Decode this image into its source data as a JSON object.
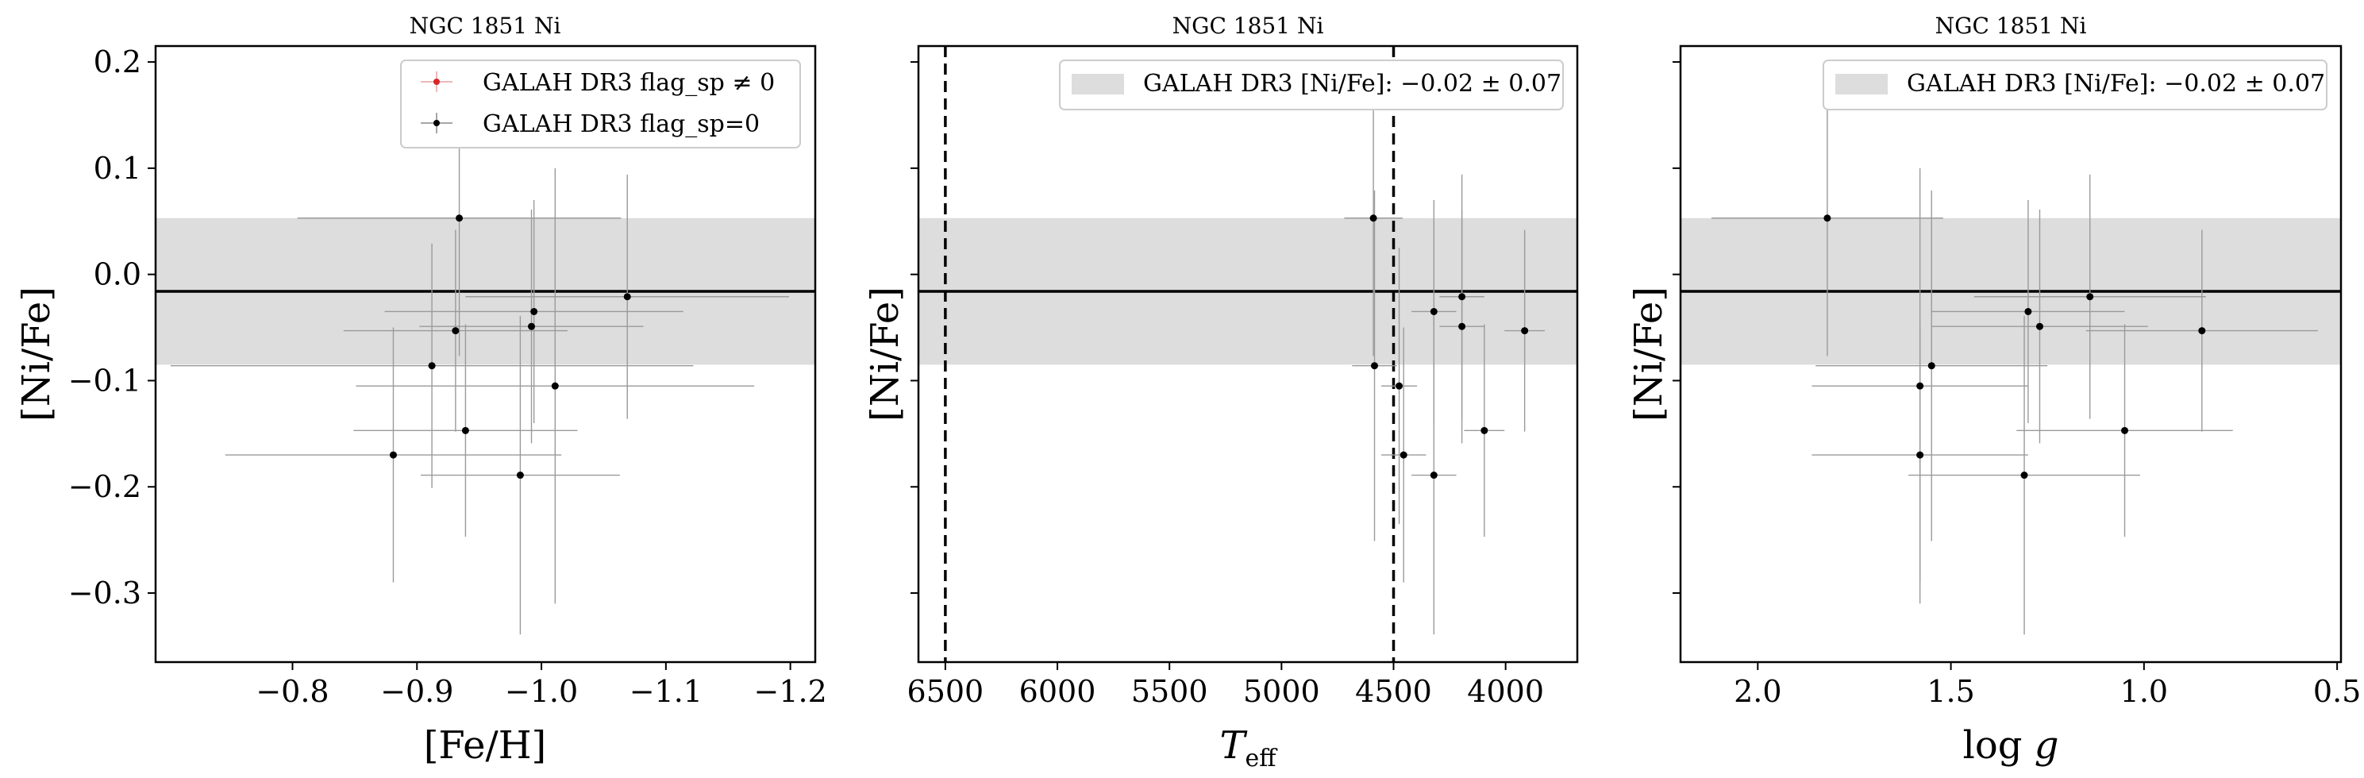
{
  "chart_data": [
    {
      "type": "scatter",
      "title": "NGC 1851 Ni",
      "xlabel": "[Fe/H]",
      "ylabel": "[Ni/Fe]",
      "xlim": [
        -0.69,
        -1.22
      ],
      "ylim": [
        -0.365,
        0.215
      ],
      "xticks": [
        -0.8,
        -0.9,
        -1.0,
        -1.1,
        -1.2
      ],
      "xtick_labels": [
        "−0.8",
        "−0.9",
        "−1.0",
        "−1.1",
        "−1.2"
      ],
      "yticks": [
        0.2,
        0.1,
        0.0,
        -0.1,
        -0.2,
        -0.3
      ],
      "ytick_labels": [
        "0.2",
        "0.1",
        "0.0",
        "−0.1",
        "−0.2",
        "−0.3"
      ],
      "band": {
        "center": -0.016,
        "half_width": 0.069
      },
      "hline": -0.016,
      "vlines": [],
      "legend": {
        "position": "top-right",
        "entries": [
          {
            "label": "GALAH DR3 flag_sp ≠ 0",
            "color": "#d62728"
          },
          {
            "label": "GALAH DR3 flag_sp=0",
            "color": "#000000"
          }
        ]
      },
      "points": [
        {
          "x": -0.934,
          "y": 0.053,
          "xerr": 0.13,
          "yerr": 0.13
        },
        {
          "x": -1.069,
          "y": -0.021,
          "xerr": 0.13,
          "yerr": 0.115
        },
        {
          "x": -0.994,
          "y": -0.035,
          "xerr": 0.12,
          "yerr": 0.105
        },
        {
          "x": -0.992,
          "y": -0.049,
          "xerr": 0.09,
          "yerr": 0.11
        },
        {
          "x": -0.931,
          "y": -0.053,
          "xerr": 0.09,
          "yerr": 0.095
        },
        {
          "x": -0.912,
          "y": -0.086,
          "xerr": 0.21,
          "yerr": 0.115
        },
        {
          "x": -1.011,
          "y": -0.105,
          "xerr": 0.16,
          "yerr": 0.205
        },
        {
          "x": -0.939,
          "y": -0.147,
          "xerr": 0.09,
          "yerr": 0.1
        },
        {
          "x": -0.881,
          "y": -0.17,
          "xerr": 0.135,
          "yerr": 0.12
        },
        {
          "x": -0.983,
          "y": -0.189,
          "xerr": 0.08,
          "yerr": 0.15
        }
      ]
    },
    {
      "type": "scatter",
      "title": "NGC 1851 Ni",
      "xlabel": "T_eff",
      "ylabel": "[Ni/Fe]",
      "xlim": [
        6620,
        3680
      ],
      "ylim": [
        -0.365,
        0.215
      ],
      "xticks": [
        6500,
        6000,
        5500,
        5000,
        4500,
        4000
      ],
      "xtick_labels": [
        "6500",
        "6000",
        "5500",
        "5000",
        "4500",
        "4000"
      ],
      "yticks": [
        0.2,
        0.1,
        0.0,
        -0.1,
        -0.2,
        -0.3
      ],
      "band": {
        "center": -0.016,
        "half_width": 0.069
      },
      "hline": -0.016,
      "vlines": [
        6500,
        4500
      ],
      "legend": {
        "position": "top-right",
        "entries": [
          {
            "label": "GALAH DR3 [Ni/Fe]: −0.02 ± 0.07",
            "color": "#dddddd"
          }
        ]
      },
      "points": [
        {
          "x": 4590,
          "y": 0.053,
          "xerr": 130,
          "yerr": 0.13
        },
        {
          "x": 4195,
          "y": -0.021,
          "xerr": 100,
          "yerr": 0.115
        },
        {
          "x": 4320,
          "y": -0.035,
          "xerr": 100,
          "yerr": 0.105
        },
        {
          "x": 4195,
          "y": -0.049,
          "xerr": 100,
          "yerr": 0.11
        },
        {
          "x": 3915,
          "y": -0.053,
          "xerr": 90,
          "yerr": 0.095
        },
        {
          "x": 4585,
          "y": -0.086,
          "xerr": 100,
          "yerr": 0.165
        },
        {
          "x": 4475,
          "y": -0.105,
          "xerr": 80,
          "yerr": 0.13
        },
        {
          "x": 4095,
          "y": -0.147,
          "xerr": 90,
          "yerr": 0.1
        },
        {
          "x": 4455,
          "y": -0.17,
          "xerr": 100,
          "yerr": 0.12
        },
        {
          "x": 4320,
          "y": -0.189,
          "xerr": 100,
          "yerr": 0.15
        }
      ]
    },
    {
      "type": "scatter",
      "title": "NGC 1851 Ni",
      "xlabel": "log g",
      "ylabel": "[Ni/Fe]",
      "xlim": [
        2.2,
        0.49
      ],
      "ylim": [
        -0.365,
        0.215
      ],
      "xticks": [
        2.0,
        1.5,
        1.0,
        0.5
      ],
      "xtick_labels": [
        "2.0",
        "1.5",
        "1.0",
        "0.5"
      ],
      "yticks": [
        0.2,
        0.1,
        0.0,
        -0.1,
        -0.2,
        -0.3
      ],
      "band": {
        "center": -0.016,
        "half_width": 0.069
      },
      "hline": -0.016,
      "vlines": [],
      "legend": {
        "position": "top-right",
        "entries": [
          {
            "label": "GALAH DR3 [Ni/Fe]: −0.02 ± 0.07",
            "color": "#dddddd"
          }
        ]
      },
      "points": [
        {
          "x": 1.82,
          "y": 0.053,
          "xerr": 0.3,
          "yerr": 0.13
        },
        {
          "x": 1.14,
          "y": -0.021,
          "xerr": 0.3,
          "yerr": 0.115
        },
        {
          "x": 1.3,
          "y": -0.035,
          "xerr": 0.25,
          "yerr": 0.105
        },
        {
          "x": 1.27,
          "y": -0.049,
          "xerr": 0.28,
          "yerr": 0.11
        },
        {
          "x": 0.85,
          "y": -0.053,
          "xerr": 0.3,
          "yerr": 0.095
        },
        {
          "x": 1.55,
          "y": -0.086,
          "xerr": 0.3,
          "yerr": 0.165
        },
        {
          "x": 1.58,
          "y": -0.105,
          "xerr": 0.28,
          "yerr": 0.205
        },
        {
          "x": 1.05,
          "y": -0.147,
          "xerr": 0.28,
          "yerr": 0.1
        },
        {
          "x": 1.58,
          "y": -0.17,
          "xerr": 0.28,
          "yerr": 0.12
        },
        {
          "x": 1.31,
          "y": -0.189,
          "xerr": 0.3,
          "yerr": 0.15
        }
      ]
    }
  ]
}
